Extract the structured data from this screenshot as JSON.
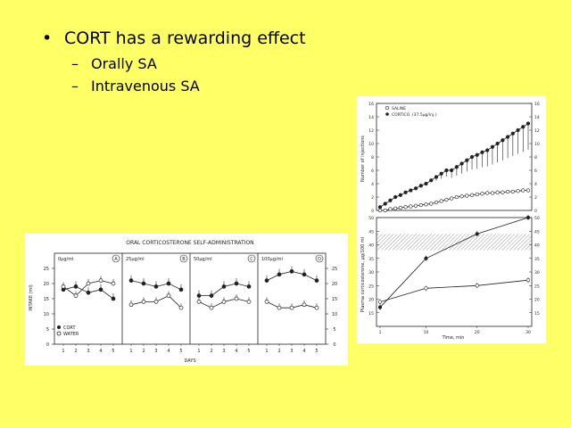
{
  "slide": {
    "bullet_main": "CORT has a rewarding effect",
    "sub_bullets": [
      "Orally SA",
      "Intravenous SA"
    ],
    "bullet_glyph": "•",
    "dash_glyph": "–"
  },
  "colors": {
    "background": "#ffff66",
    "ink": "#222222",
    "figure_bg": "#ffffff"
  },
  "chart_data": [
    {
      "type": "line",
      "title": "ORAL CORTICOSTERONE SELF-ADMINISTRATION",
      "xlabel": "DAYS",
      "ylabel": "INTAKE (ml)",
      "ylim": [
        0,
        30
      ],
      "y_ticks": [
        0,
        5,
        10,
        15,
        20,
        25
      ],
      "legend": [
        "CORT",
        "WATER"
      ],
      "legend_position": "bottom-left",
      "panels": [
        {
          "label": "0µg/ml",
          "badge": "A",
          "x": [
            1,
            2,
            3,
            4,
            5
          ],
          "series": [
            {
              "name": "CORT",
              "values": [
                18,
                19,
                17,
                18,
                15
              ]
            },
            {
              "name": "WATER",
              "values": [
                19,
                16,
                20,
                21,
                20
              ]
            }
          ]
        },
        {
          "label": "25µg/ml",
          "badge": "B",
          "x": [
            1,
            2,
            3,
            4,
            5
          ],
          "series": [
            {
              "name": "CORT",
              "values": [
                21,
                20,
                19,
                20,
                18
              ]
            },
            {
              "name": "WATER",
              "values": [
                13,
                14,
                14,
                16,
                12
              ]
            }
          ]
        },
        {
          "label": "50µg/ml",
          "badge": "C",
          "x": [
            1,
            2,
            3,
            4,
            5
          ],
          "series": [
            {
              "name": "CORT",
              "values": [
                16,
                16,
                19,
                20,
                19
              ]
            },
            {
              "name": "WATER",
              "values": [
                14,
                12,
                14,
                15,
                14
              ]
            }
          ]
        },
        {
          "label": "100µg/ml",
          "badge": "D",
          "x": [
            1,
            2,
            3,
            4,
            5
          ],
          "series": [
            {
              "name": "CORT",
              "values": [
                21,
                23,
                24,
                23,
                21
              ]
            },
            {
              "name": "WATER",
              "values": [
                14,
                12,
                12,
                13,
                12
              ]
            }
          ]
        }
      ]
    },
    {
      "type": "line",
      "title": "",
      "xlabel": "Time, min",
      "ylabel": "Number of injections",
      "x_ticks": [
        1,
        10,
        20,
        30
      ],
      "ylim": [
        0,
        16
      ],
      "y_ticks": [
        0,
        2,
        4,
        6,
        8,
        10,
        12,
        14,
        16
      ],
      "legend": [
        "SALINE",
        "CORTICO. (37.5µg/inj.)"
      ],
      "legend_position": "top-left",
      "x": [
        1,
        2,
        3,
        4,
        5,
        6,
        7,
        8,
        9,
        10,
        11,
        12,
        13,
        14,
        15,
        16,
        17,
        18,
        19,
        20,
        21,
        22,
        23,
        24,
        25,
        26,
        27,
        28,
        29,
        30
      ],
      "series": [
        {
          "name": "CORTICO. (37.5µg/inj.)",
          "values": [
            0.5,
            1,
            1.5,
            2,
            2.3,
            2.7,
            3,
            3.3,
            3.7,
            4,
            4.5,
            5,
            5.5,
            6,
            6,
            6.5,
            7,
            7.5,
            8,
            8.3,
            8.7,
            9,
            9.5,
            10,
            10.5,
            11,
            11.5,
            12,
            12.5,
            13
          ]
        },
        {
          "name": "SALINE",
          "values": [
            0,
            0,
            0.2,
            0.3,
            0.4,
            0.5,
            0.6,
            0.7,
            0.8,
            0.9,
            1,
            1.2,
            1.4,
            1.6,
            1.8,
            2,
            2.1,
            2.2,
            2.3,
            2.4,
            2.5,
            2.6,
            2.6,
            2.7,
            2.7,
            2.8,
            2.8,
            2.9,
            3,
            3
          ]
        }
      ]
    },
    {
      "type": "line",
      "title": "",
      "xlabel": "Time, min",
      "ylabel": "Plasma corticosterone, µg/100 ml",
      "x_ticks": [
        1,
        10,
        20,
        30
      ],
      "ylim": [
        10,
        50
      ],
      "y_ticks": [
        15,
        20,
        25,
        30,
        35,
        40,
        45,
        50
      ],
      "reference_band": [
        38,
        44
      ],
      "series": [
        {
          "name": "CORTICO.",
          "x": [
            1,
            10,
            20,
            30
          ],
          "values": [
            17,
            35,
            44,
            50
          ]
        },
        {
          "name": "SALINE",
          "x": [
            1,
            10,
            20,
            30
          ],
          "values": [
            19,
            24,
            25,
            27
          ]
        }
      ]
    }
  ]
}
